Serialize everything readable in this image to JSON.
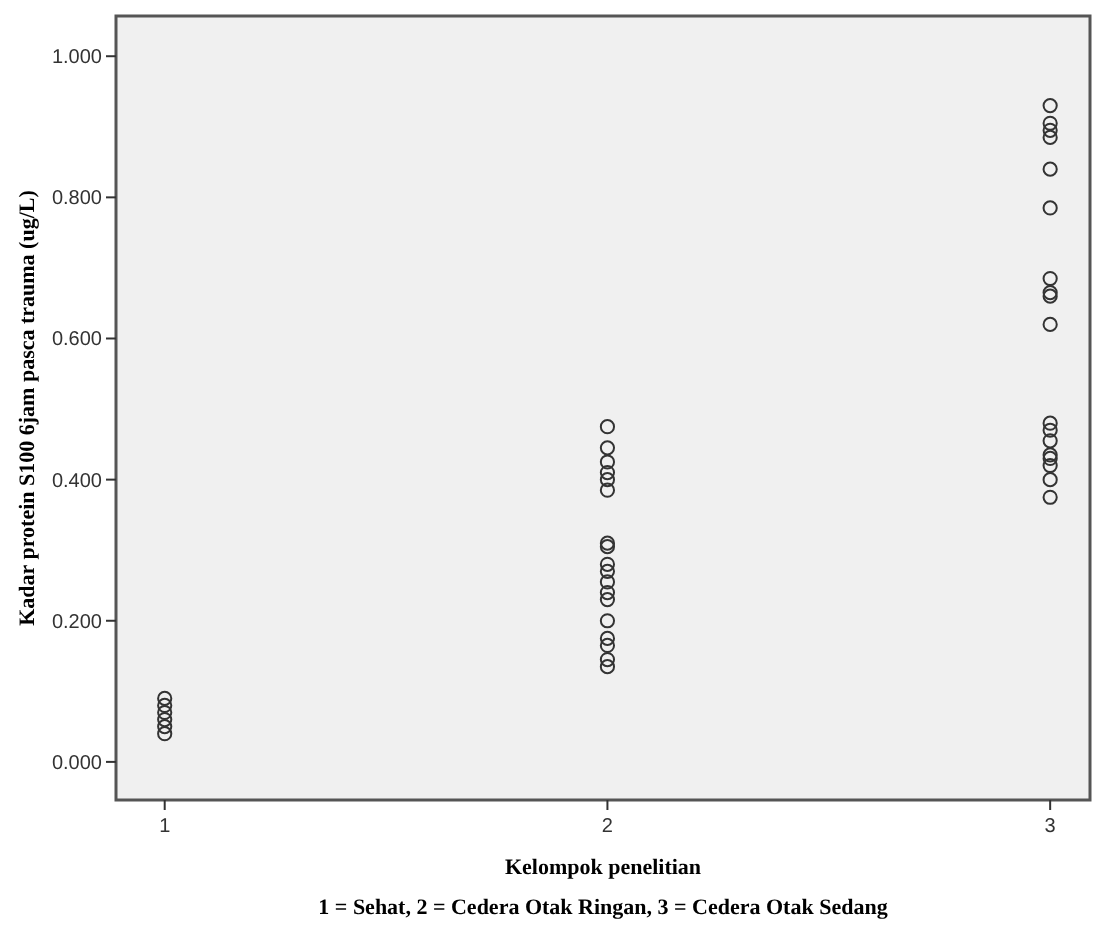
{
  "chart_data": {
    "type": "scatter",
    "xlabel": "Kelompok penelitian",
    "ylabel": "Kadar protein S100 6jam pasca trauma (ug/L)",
    "annotations": [
      "1 = Sehat, 2 = Cedera Otak Ringan, 3 = Cedera Otak Sedang"
    ],
    "xlim": [
      0.89,
      3.09
    ],
    "xticks": [
      1,
      2,
      3
    ],
    "ylim": [
      -0.054,
      1.057
    ],
    "yticks": [
      {
        "value": 0,
        "label": "0.000"
      },
      {
        "value": 0.2,
        "label": "0.200"
      },
      {
        "value": 0.4,
        "label": "0.400"
      },
      {
        "value": 0.6,
        "label": "0.600"
      },
      {
        "value": 0.8,
        "label": "0.800"
      },
      {
        "value": 1,
        "label": "1.000"
      }
    ],
    "marker": "circle",
    "series": [
      {
        "color": "#333333",
        "x": [
          1,
          1,
          1,
          1,
          1,
          1
        ],
        "values": [
          0.04,
          0.05,
          0.06,
          0.07,
          0.08,
          0.09
        ]
      },
      {
        "color": "#333333",
        "x": [
          2,
          2,
          2,
          2,
          2,
          2,
          2,
          2,
          2,
          2,
          2,
          2,
          2,
          2,
          2,
          2,
          2,
          2
        ],
        "values": [
          0.475,
          0.445,
          0.425,
          0.41,
          0.4,
          0.385,
          0.31,
          0.305,
          0.28,
          0.27,
          0.255,
          0.24,
          0.23,
          0.2,
          0.175,
          0.165,
          0.145,
          0.135
        ]
      },
      {
        "color": "#333333",
        "x": [
          3,
          3,
          3,
          3,
          3,
          3,
          3,
          3,
          3,
          3,
          3,
          3,
          3,
          3,
          3,
          3,
          3,
          3
        ],
        "values": [
          0.93,
          0.905,
          0.895,
          0.885,
          0.84,
          0.785,
          0.685,
          0.665,
          0.66,
          0.62,
          0.48,
          0.47,
          0.455,
          0.435,
          0.43,
          0.42,
          0.4,
          0.375
        ]
      }
    ]
  }
}
